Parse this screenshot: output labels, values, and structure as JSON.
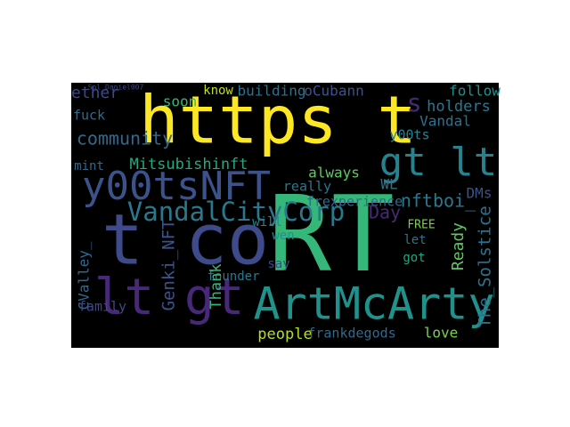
{
  "words": [
    "https t",
    "RT",
    "t co",
    "y00tsNFT",
    "lt gt",
    "ArtMcArty",
    "gt lt",
    "VandalCityCorp",
    "community",
    "ether",
    "s",
    "Mitsubishinft",
    "building",
    "know",
    "oCubann",
    "follow",
    "holders",
    "soon",
    "fuck",
    "Vandal",
    "y00ts",
    "mint",
    "always",
    "really",
    "DMs",
    "WL",
    "frexperience",
    "nftboi_",
    "FREE",
    "Day",
    "will",
    "wen",
    "let",
    "got",
    "say",
    "founder",
    "Thank",
    "Genki_NFT",
    "CValley_",
    "Ready",
    "The_Solstice",
    "family",
    "people",
    "frankdegods",
    "love",
    "Sol_Daniel007"
  ]
}
